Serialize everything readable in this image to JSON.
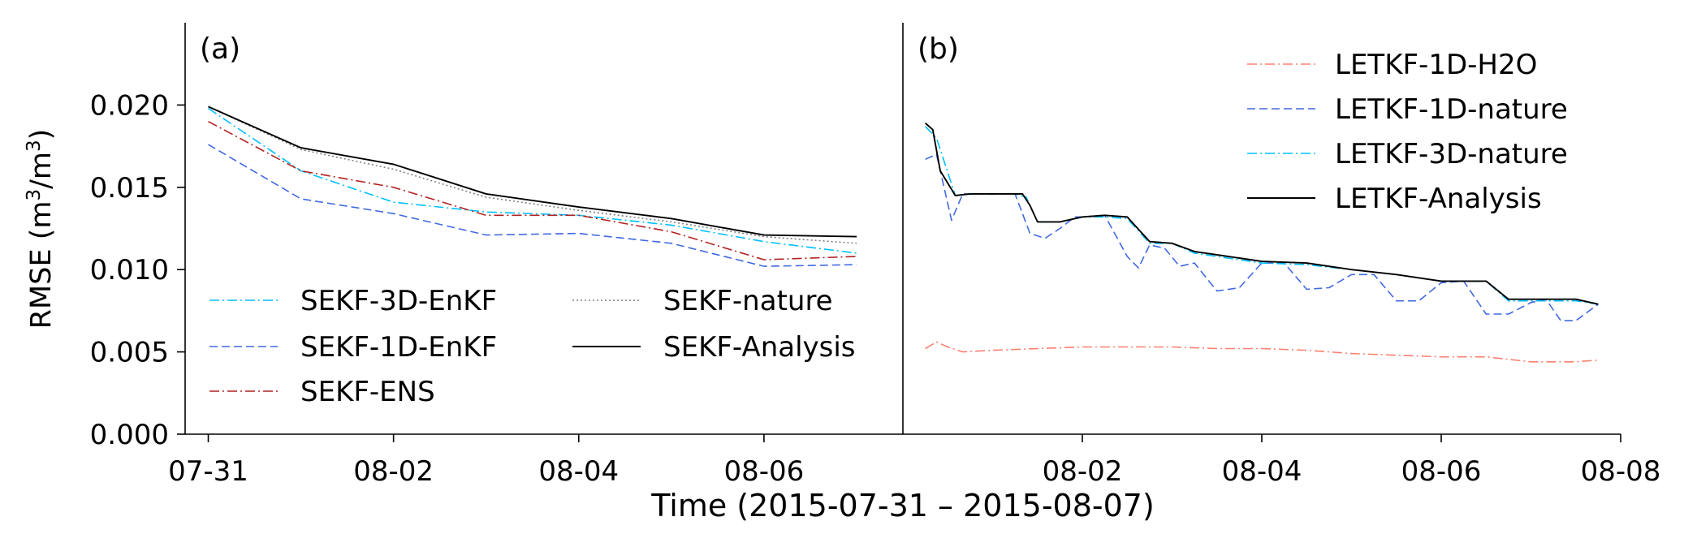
{
  "figure": {
    "ylabel_main": "RMSE (m",
    "ylabel_unit_sup1": "3",
    "ylabel_mid": "/m",
    "ylabel_unit_sup2": "3",
    "ylabel_close": ")",
    "xlabel": "Time (2015-07-31 – 2015-08-07)",
    "y_tick_labels": [
      "0.000",
      "0.005",
      "0.010",
      "0.015",
      "0.020"
    ]
  },
  "chart_data": [
    {
      "type": "line",
      "panel_label": "(a)",
      "x_unit": "date",
      "x": [
        "2015-07-31",
        "2015-08-01",
        "2015-08-02",
        "2015-08-03",
        "2015-08-04",
        "2015-08-05",
        "2015-08-06",
        "2015-08-07"
      ],
      "x_tick_labels": [
        "07-31",
        "08-02",
        "08-04",
        "08-06"
      ],
      "x_ticks": [
        "2015-07-31",
        "2015-08-02",
        "2015-08-04",
        "2015-08-06"
      ],
      "xlim": [
        "2015-07-30T18:00",
        "2015-08-07T12:00"
      ],
      "ylim": [
        0,
        0.025
      ],
      "y_ticks": [
        0,
        0.005,
        0.01,
        0.015,
        0.02
      ],
      "ylabel": "RMSE (m3/m3)",
      "legend_position": "lower-left",
      "legend_columns": 2,
      "series": [
        {
          "name": "SEKF-3D-EnKF",
          "color": "#00bfff",
          "dash": "dashdot",
          "values": [
            0.0198,
            0.016,
            0.0141,
            0.0135,
            0.0133,
            0.0127,
            0.0117,
            0.011
          ]
        },
        {
          "name": "SEKF-1D-EnKF",
          "color": "#4169e1",
          "dash": "dashed",
          "values": [
            0.0176,
            0.0143,
            0.0134,
            0.0121,
            0.0122,
            0.0116,
            0.0102,
            0.0103
          ]
        },
        {
          "name": "SEKF-ENS",
          "color": "#b22222",
          "dash": "dashdot",
          "values": [
            0.019,
            0.016,
            0.015,
            0.0133,
            0.0133,
            0.0123,
            0.0106,
            0.0108
          ]
        },
        {
          "name": "SEKF-nature",
          "color": "#808080",
          "dash": "dotted",
          "values": [
            0.0199,
            0.0173,
            0.0161,
            0.0144,
            0.0136,
            0.0129,
            0.012,
            0.0116
          ]
        },
        {
          "name": "SEKF-Analysis",
          "color": "#000000",
          "dash": "solid",
          "values": [
            0.0199,
            0.0174,
            0.0164,
            0.0146,
            0.0138,
            0.0131,
            0.0121,
            0.012
          ]
        }
      ]
    },
    {
      "type": "line",
      "panel_label": "(b)",
      "x_unit": "date",
      "x_tick_labels": [
        "08-02",
        "08-04",
        "08-06",
        "08-08"
      ],
      "x_ticks": [
        "2015-08-02",
        "2015-08-04",
        "2015-08-06",
        "2015-08-08"
      ],
      "xlim": [
        "2015-07-31T00:00",
        "2015-08-08T00:00"
      ],
      "ylim": [
        0,
        0.025
      ],
      "legend_position": "top-right",
      "legend_columns": 1,
      "series": [
        {
          "name": "LETKF-1D-H2O",
          "color": "#fa8072",
          "dash": "dashdot",
          "x": [
            "2015-07-31T06:00",
            "2015-07-31T09:00",
            "2015-07-31T12:00",
            "2015-07-31T16:00",
            "2015-08-01T00:00",
            "2015-08-01T12:00",
            "2015-08-02T00:00",
            "2015-08-02T12:00",
            "2015-08-03T00:00",
            "2015-08-03T12:00",
            "2015-08-04T00:00",
            "2015-08-04T12:00",
            "2015-08-05T00:00",
            "2015-08-05T12:00",
            "2015-08-06T00:00",
            "2015-08-06T12:00",
            "2015-08-07T00:00",
            "2015-08-07T12:00",
            "2015-08-07T18:00"
          ],
          "values": [
            0.0052,
            0.0056,
            0.0053,
            0.005,
            0.0051,
            0.0052,
            0.0053,
            0.0053,
            0.0053,
            0.0052,
            0.0052,
            0.0051,
            0.0049,
            0.0048,
            0.0047,
            0.0047,
            0.0044,
            0.0044,
            0.0045
          ]
        },
        {
          "name": "LETKF-1D-nature",
          "color": "#4169e1",
          "dash": "dashed",
          "x": [
            "2015-07-31T06:00",
            "2015-07-31T09:00",
            "2015-07-31T13:00",
            "2015-07-31T16:00",
            "2015-07-31T20:00",
            "2015-08-01T00:00",
            "2015-08-01T06:00",
            "2015-08-01T10:00",
            "2015-08-01T14:00",
            "2015-08-01T18:00",
            "2015-08-01T22:00",
            "2015-08-02T00:00",
            "2015-08-02T06:00",
            "2015-08-02T12:00",
            "2015-08-02T15:00",
            "2015-08-02T18:00",
            "2015-08-02T22:00",
            "2015-08-03T02:00",
            "2015-08-03T06:00",
            "2015-08-03T12:00",
            "2015-08-03T18:00",
            "2015-08-04T00:00",
            "2015-08-04T06:00",
            "2015-08-04T12:00",
            "2015-08-04T18:00",
            "2015-08-05T00:00",
            "2015-08-05T06:00",
            "2015-08-05T12:00",
            "2015-08-05T18:00",
            "2015-08-06T00:00",
            "2015-08-06T06:00",
            "2015-08-06T12:00",
            "2015-08-06T18:00",
            "2015-08-07T00:00",
            "2015-08-07T04:00",
            "2015-08-07T08:00",
            "2015-08-07T12:00",
            "2015-08-07T18:00"
          ],
          "values": [
            0.0167,
            0.017,
            0.013,
            0.0146,
            0.0146,
            0.0146,
            0.0146,
            0.0122,
            0.0119,
            0.0125,
            0.0132,
            0.0132,
            0.0133,
            0.0108,
            0.0101,
            0.0115,
            0.0113,
            0.0102,
            0.0104,
            0.0087,
            0.0089,
            0.0104,
            0.0104,
            0.0088,
            0.0089,
            0.0097,
            0.0097,
            0.0081,
            0.0081,
            0.0092,
            0.0093,
            0.0073,
            0.0073,
            0.008,
            0.0082,
            0.0069,
            0.0069,
            0.0079
          ]
        },
        {
          "name": "LETKF-3D-nature",
          "color": "#00bfff",
          "dash": "dashdot",
          "x": [
            "2015-07-31T06:00",
            "2015-07-31T09:00",
            "2015-07-31T14:00",
            "2015-07-31T18:00",
            "2015-08-01T00:00",
            "2015-08-01T06:00",
            "2015-08-01T09:00",
            "2015-08-01T12:00",
            "2015-08-01T18:00",
            "2015-08-02T00:00",
            "2015-08-02T06:00",
            "2015-08-02T12:00",
            "2015-08-02T18:00",
            "2015-08-03T00:00",
            "2015-08-03T06:00",
            "2015-08-03T12:00",
            "2015-08-04T00:00",
            "2015-08-04T12:00",
            "2015-08-05T00:00",
            "2015-08-05T12:00",
            "2015-08-06T00:00",
            "2015-08-06T12:00",
            "2015-08-06T18:00",
            "2015-08-07T00:00",
            "2015-08-07T12:00",
            "2015-08-07T18:00"
          ],
          "values": [
            0.0187,
            0.018,
            0.0145,
            0.0146,
            0.0146,
            0.0146,
            0.0144,
            0.0129,
            0.0129,
            0.0132,
            0.0132,
            0.0131,
            0.0116,
            0.0116,
            0.011,
            0.0108,
            0.0104,
            0.0103,
            0.01,
            0.0097,
            0.0093,
            0.0093,
            0.0081,
            0.0081,
            0.0081,
            0.0079
          ]
        },
        {
          "name": "LETKF-Analysis",
          "color": "#000000",
          "dash": "solid",
          "x": [
            "2015-07-31T06:00",
            "2015-07-31T08:00",
            "2015-07-31T10:00",
            "2015-07-31T14:00",
            "2015-07-31T18:00",
            "2015-08-01T00:00",
            "2015-08-01T06:00",
            "2015-08-01T08:00",
            "2015-08-01T10:00",
            "2015-08-01T12:00",
            "2015-08-01T18:00",
            "2015-08-02T00:00",
            "2015-08-02T06:00",
            "2015-08-02T12:00",
            "2015-08-02T18:00",
            "2015-08-03T00:00",
            "2015-08-03T06:00",
            "2015-08-03T12:00",
            "2015-08-04T00:00",
            "2015-08-04T12:00",
            "2015-08-05T00:00",
            "2015-08-05T12:00",
            "2015-08-06T00:00",
            "2015-08-06T12:00",
            "2015-08-06T18:00",
            "2015-08-07T00:00",
            "2015-08-07T12:00",
            "2015-08-07T18:00"
          ],
          "values": [
            0.0189,
            0.0185,
            0.016,
            0.0145,
            0.0146,
            0.0146,
            0.0146,
            0.0146,
            0.0139,
            0.0129,
            0.0129,
            0.0132,
            0.0133,
            0.0132,
            0.0117,
            0.0116,
            0.0111,
            0.0109,
            0.0105,
            0.0104,
            0.01,
            0.0097,
            0.0093,
            0.0093,
            0.0082,
            0.0082,
            0.0082,
            0.0079
          ]
        }
      ]
    }
  ]
}
